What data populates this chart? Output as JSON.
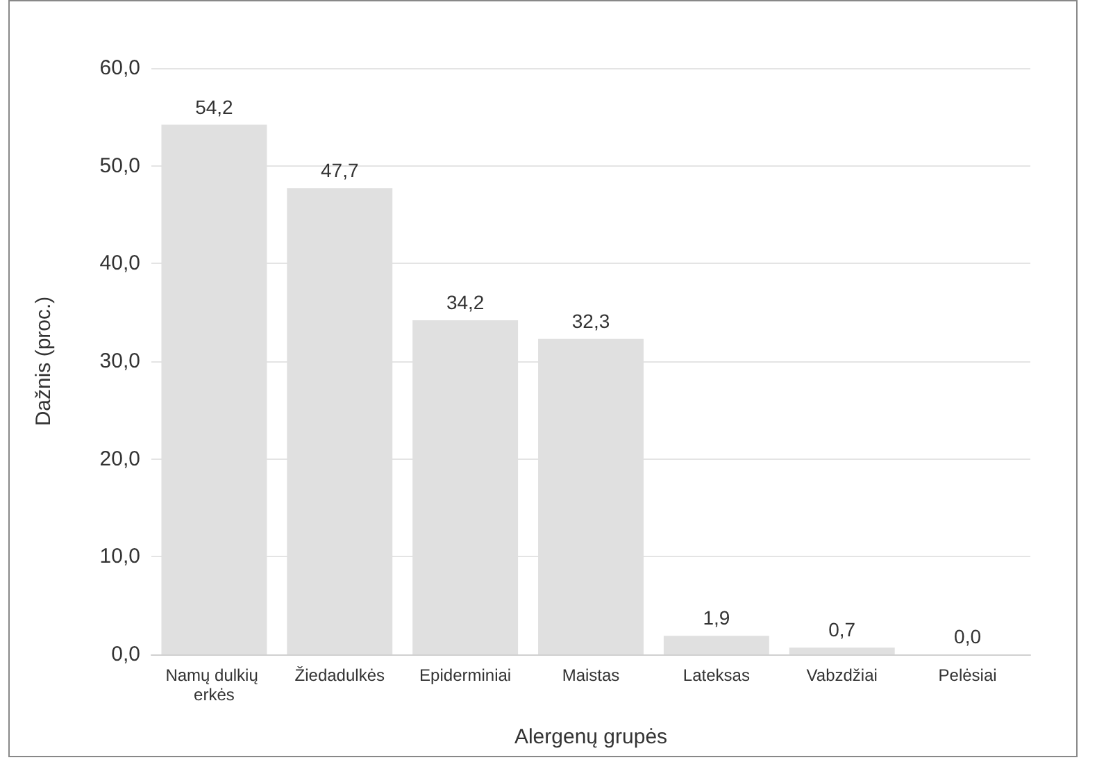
{
  "chart_data": {
    "type": "bar",
    "xlabel": "Alergenų grupės",
    "ylabel": "Dažnis (proc.)",
    "categories": [
      "Namų dulkių erkės",
      "Žiedadulkės",
      "Epiderminiai",
      "Maistas",
      "Lateksas",
      "Vabzdžiai",
      "Pelėsiai"
    ],
    "values": [
      54.2,
      47.7,
      34.2,
      32.3,
      1.9,
      0.7,
      0.0
    ],
    "value_labels": [
      "54,2",
      "47,7",
      "34,2",
      "32,3",
      "1,9",
      "0,7",
      "0,0"
    ],
    "color": "#e0e0e0",
    "ylim": [
      0,
      60
    ],
    "yticks": [
      {
        "value": 0,
        "label": "0,0"
      },
      {
        "value": 10,
        "label": "10,0"
      },
      {
        "value": 20,
        "label": "20,0"
      },
      {
        "value": 30,
        "label": "30,0"
      },
      {
        "value": 40,
        "label": "40,0"
      },
      {
        "value": 50,
        "label": "50,0"
      },
      {
        "value": 60,
        "label": "60,0"
      }
    ],
    "grid": "y"
  }
}
